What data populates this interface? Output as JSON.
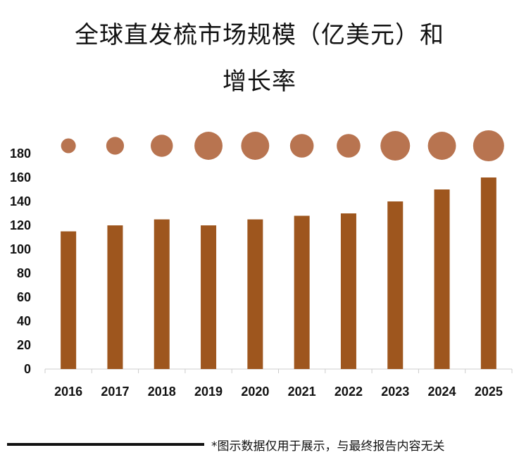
{
  "chart_data": {
    "type": "bar",
    "title_line_1": "全球直发梳市场规模（亿美元）和",
    "title_line_2": "增长率",
    "categories": [
      "2016",
      "2017",
      "2018",
      "2019",
      "2020",
      "2021",
      "2022",
      "2023",
      "2024",
      "2025"
    ],
    "values": [
      115,
      120,
      125,
      120,
      125,
      128,
      130,
      140,
      150,
      160
    ],
    "growth_rate_bubbles": {
      "description_note": "relative bubble size indicates growth rate; no numeric labels shown",
      "relative_sizes": [
        0.5,
        0.6,
        0.75,
        0.95,
        0.95,
        0.8,
        0.8,
        1.0,
        0.95,
        1.05
      ]
    },
    "yticks": [
      0,
      20,
      40,
      60,
      80,
      100,
      120,
      140,
      160,
      180
    ],
    "ylim": [
      0,
      180
    ],
    "xlabel": "",
    "ylabel": "",
    "grid": false,
    "colors": {
      "bar": "#9E561E",
      "bubble": "#B87450",
      "axis": "#cccccc",
      "text": "#111111"
    }
  },
  "footer": {
    "note": "*图示数据仅用于展示，与最终报告内容无关"
  }
}
